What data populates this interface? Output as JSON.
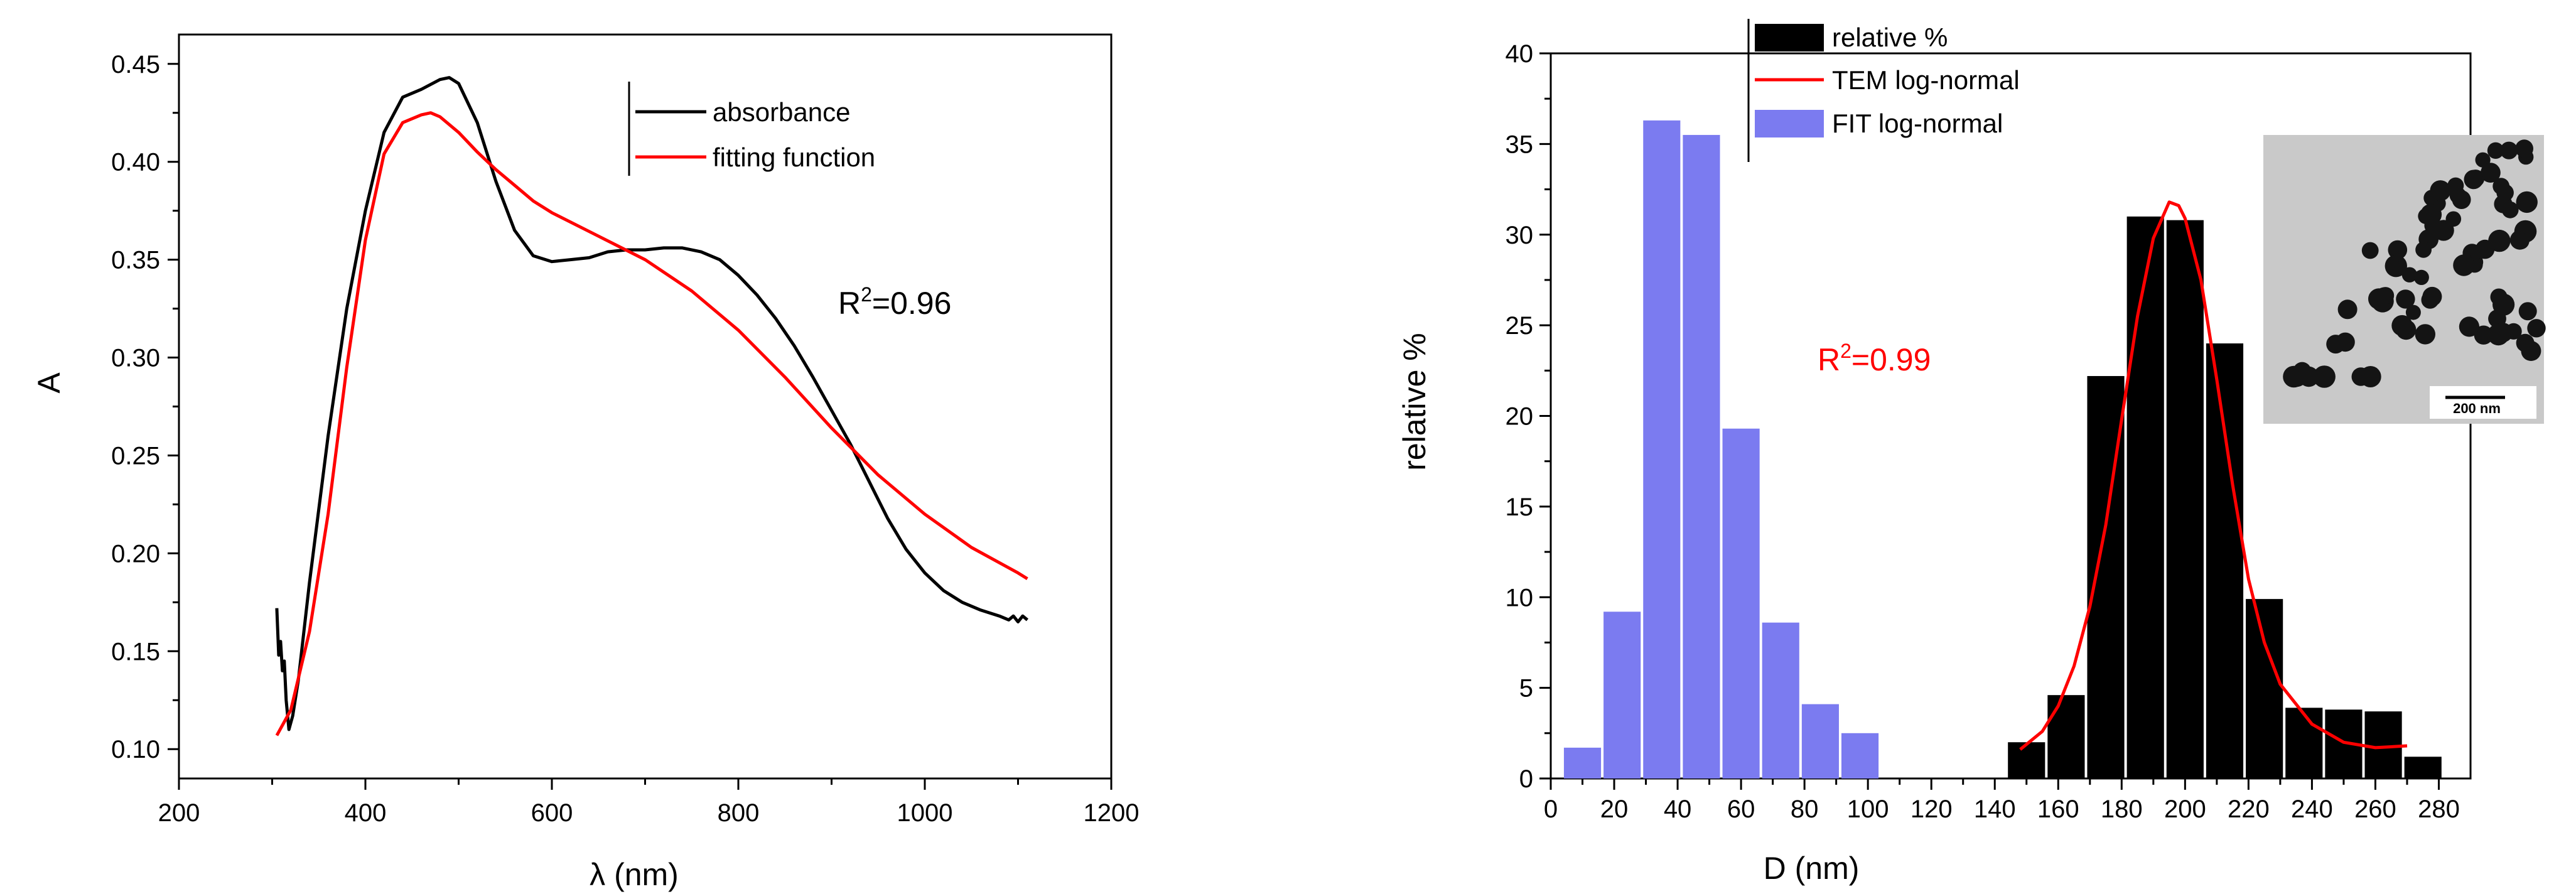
{
  "chart_data": [
    {
      "type": "line",
      "xlabel": "λ (nm)",
      "ylabel": "A",
      "xlim": [
        200,
        1200
      ],
      "ylim": [
        0.085,
        0.465
      ],
      "xticks": [
        200,
        400,
        600,
        800,
        1000,
        1200
      ],
      "yticks": [
        0.1,
        0.15,
        0.2,
        0.25,
        0.3,
        0.35,
        0.4,
        0.45
      ],
      "ytick_labels": [
        "0.10",
        "0.15",
        "0.20",
        "0.25",
        "0.30",
        "0.35",
        "0.40",
        "0.45"
      ],
      "legend": [
        "absorbance",
        "fitting function"
      ],
      "annotation": {
        "prefix": "R",
        "sup": "2",
        "suffix": "=0.96"
      },
      "series": [
        {
          "name": "absorbance",
          "color": "#000000",
          "x": [
            305,
            307,
            309,
            311,
            313,
            315,
            318,
            322,
            328,
            340,
            360,
            380,
            400,
            420,
            440,
            460,
            480,
            490,
            500,
            520,
            540,
            560,
            580,
            600,
            620,
            640,
            660,
            680,
            700,
            720,
            740,
            760,
            780,
            800,
            820,
            840,
            860,
            880,
            900,
            920,
            940,
            960,
            980,
            1000,
            1020,
            1040,
            1060,
            1080,
            1090,
            1095,
            1100,
            1105,
            1110
          ],
          "y": [
            0.172,
            0.148,
            0.155,
            0.14,
            0.145,
            0.125,
            0.11,
            0.117,
            0.135,
            0.185,
            0.26,
            0.325,
            0.375,
            0.415,
            0.433,
            0.437,
            0.442,
            0.443,
            0.44,
            0.42,
            0.39,
            0.365,
            0.352,
            0.349,
            0.35,
            0.351,
            0.354,
            0.355,
            0.355,
            0.356,
            0.356,
            0.354,
            0.35,
            0.342,
            0.332,
            0.32,
            0.306,
            0.29,
            0.273,
            0.256,
            0.237,
            0.218,
            0.202,
            0.19,
            0.181,
            0.175,
            0.171,
            0.168,
            0.166,
            0.168,
            0.165,
            0.168,
            0.166
          ]
        },
        {
          "name": "fitting function",
          "color": "#ff0000",
          "x": [
            305,
            320,
            340,
            360,
            380,
            400,
            420,
            440,
            460,
            470,
            480,
            500,
            520,
            540,
            560,
            580,
            600,
            650,
            700,
            750,
            800,
            850,
            900,
            950,
            1000,
            1050,
            1100,
            1110
          ],
          "y": [
            0.107,
            0.12,
            0.16,
            0.22,
            0.295,
            0.36,
            0.404,
            0.42,
            0.424,
            0.425,
            0.423,
            0.415,
            0.405,
            0.396,
            0.388,
            0.38,
            0.374,
            0.362,
            0.35,
            0.334,
            0.314,
            0.29,
            0.264,
            0.24,
            0.22,
            0.203,
            0.19,
            0.187
          ]
        }
      ]
    },
    {
      "type": "bar",
      "xlabel": "D (nm)",
      "ylabel": "relative %",
      "xlim": [
        0,
        290
      ],
      "ylim": [
        0,
        40
      ],
      "xticks": [
        0,
        20,
        40,
        60,
        80,
        100,
        120,
        140,
        160,
        180,
        200,
        220,
        240,
        260,
        280
      ],
      "yticks": [
        0,
        5,
        10,
        15,
        20,
        25,
        30,
        35,
        40
      ],
      "legend": [
        "relative %",
        "TEM log-normal",
        "FIT log-normal"
      ],
      "annotation": {
        "prefix": "R",
        "sup": "2",
        "suffix": "=0.99"
      },
      "inset": {
        "scale_label": "200 nm"
      },
      "series": [
        {
          "name": "relative %",
          "color": "#000000",
          "x": [
            150,
            162.5,
            175,
            187.5,
            200,
            212.5,
            225,
            237.5,
            250,
            262.5,
            275
          ],
          "values": [
            2.0,
            4.6,
            22.2,
            31.0,
            30.8,
            24.0,
            9.9,
            3.9,
            3.8,
            3.7,
            1.2
          ],
          "width": 12.5
        },
        {
          "name": "FIT log-normal",
          "color": "#7b7bf0",
          "x": [
            10,
            22.5,
            35,
            47.5,
            60,
            72.5,
            85,
            97.5
          ],
          "values": [
            1.7,
            9.2,
            36.3,
            35.5,
            19.3,
            8.6,
            4.1,
            2.5
          ],
          "width": 12.5
        },
        {
          "name": "TEM log-normal",
          "color": "#ff0000",
          "x": [
            148,
            155,
            160,
            165,
            170,
            175,
            180,
            185,
            190,
            195,
            198,
            200,
            205,
            210,
            215,
            220,
            225,
            230,
            240,
            250,
            260,
            270
          ],
          "y": [
            1.6,
            2.6,
            4.0,
            6.2,
            9.5,
            14.0,
            19.8,
            25.5,
            29.8,
            31.8,
            31.6,
            30.9,
            27.5,
            22.0,
            16.2,
            11.0,
            7.5,
            5.2,
            3.0,
            2.0,
            1.7,
            1.8
          ]
        }
      ]
    }
  ]
}
